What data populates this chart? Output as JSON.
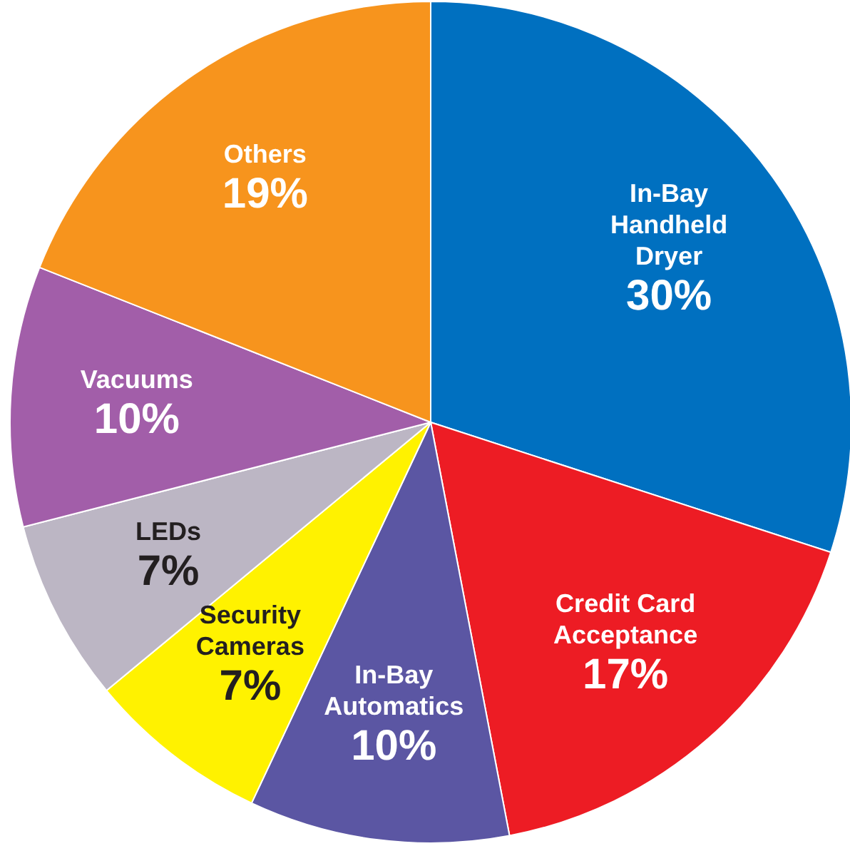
{
  "chart_data": {
    "type": "pie",
    "categories": [
      "In-Bay Handheld Dryer",
      "Credit Card Acceptance",
      "In-Bay Automatics",
      "Security Cameras",
      "LEDs",
      "Vacuums",
      "Others"
    ],
    "values": [
      30,
      17,
      10,
      7,
      7,
      10,
      19
    ],
    "value_labels": [
      "30%",
      "17%",
      "10%",
      "7%",
      "7%",
      "10%",
      "19%"
    ],
    "colors": [
      "#0070c0",
      "#ed1c24",
      "#5b56a3",
      "#fff200",
      "#bcb6c4",
      "#a25ea9",
      "#f7941d"
    ],
    "legend": false
  }
}
